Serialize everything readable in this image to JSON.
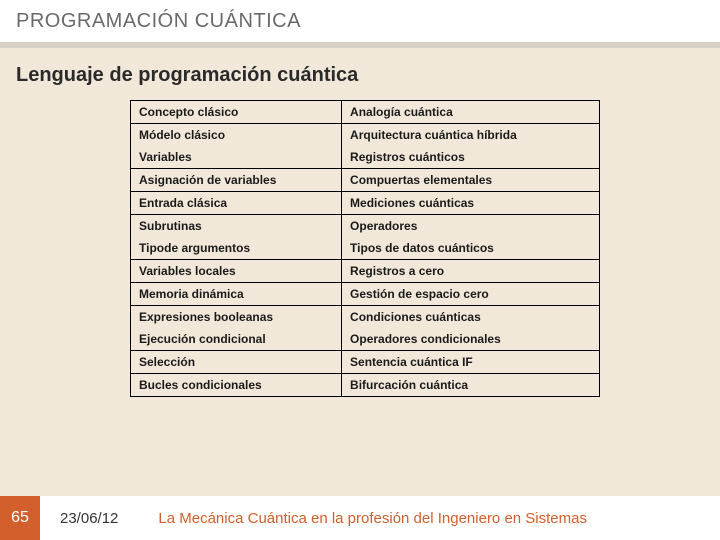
{
  "colors": {
    "background": "#f2e8da",
    "header_bg": "#ffffff",
    "divider": "#d7d0c4",
    "accent": "#d25f2c",
    "text_dark": "#2a2a2a",
    "text_muted": "#6a6a6a"
  },
  "header": {
    "title": "PROGRAMACIÓN CUÁNTICA"
  },
  "subtitle": "Lenguaje de programación cuántica",
  "table": {
    "headers": [
      "Concepto clásico",
      "Analogía cuántica"
    ],
    "groups": [
      [
        [
          "Módelo clásico",
          "Arquitectura cuántica híbrida"
        ],
        [
          "Variables",
          "Registros cuánticos"
        ]
      ],
      [
        [
          "Asignación de variables",
          "Compuertas elementales"
        ]
      ],
      [
        [
          "Entrada clásica",
          "Mediciones cuánticas"
        ]
      ],
      [
        [
          "Subrutinas",
          "Operadores"
        ],
        [
          "Tipode argumentos",
          "Tipos de datos cuánticos"
        ]
      ],
      [
        [
          "Variables locales",
          "Registros a cero"
        ]
      ],
      [
        [
          "Memoria dinámica",
          "Gestión de espacio cero"
        ]
      ],
      [
        [
          "Expresiones booleanas",
          "Condiciones cuánticas"
        ],
        [
          "Ejecución condicional",
          "Operadores condicionales"
        ]
      ],
      [
        [
          "Selección",
          "Sentencia cuántica IF"
        ]
      ],
      [
        [
          "Bucles condicionales",
          "Bifurcación cuántica"
        ]
      ]
    ]
  },
  "footer": {
    "slide_number": "65",
    "date": "23/06/12",
    "text": "La Mecánica Cuántica en la profesión del Ingeniero en Sistemas"
  }
}
